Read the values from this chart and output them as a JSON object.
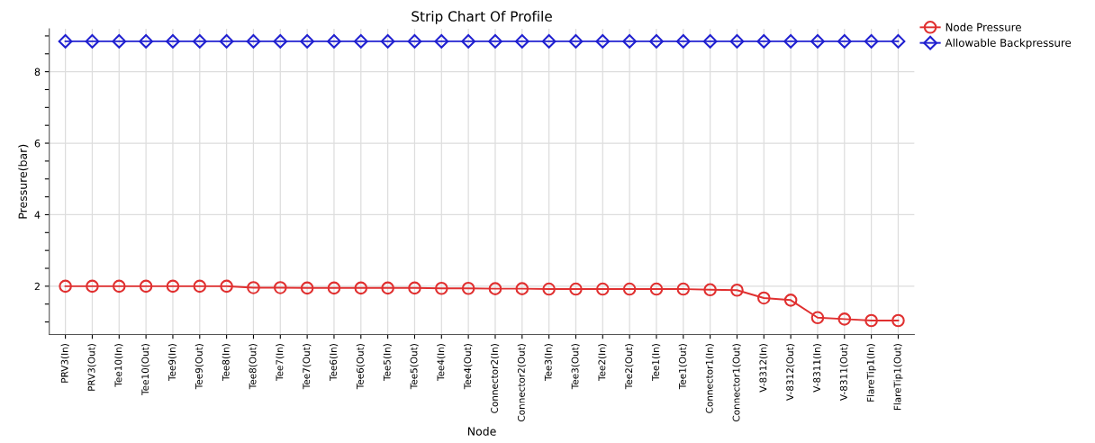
{
  "chart_data": {
    "type": "line",
    "title": "Strip Chart Of Profile",
    "xlabel": "Node",
    "ylabel": "Pressure(bar)",
    "categories": [
      "PRV3(In)",
      "PRV3(Out)",
      "Tee10(In)",
      "Tee10(Out)",
      "Tee9(In)",
      "Tee9(Out)",
      "Tee8(In)",
      "Tee8(Out)",
      "Tee7(In)",
      "Tee7(Out)",
      "Tee6(In)",
      "Tee6(Out)",
      "Tee5(In)",
      "Tee5(Out)",
      "Tee4(In)",
      "Tee4(Out)",
      "Connector2(In)",
      "Connector2(Out)",
      "Tee3(In)",
      "Tee3(Out)",
      "Tee2(In)",
      "Tee2(Out)",
      "Tee1(In)",
      "Tee1(Out)",
      "Connector1(In)",
      "Connector1(Out)",
      "V-8312(In)",
      "V-8312(Out)",
      "V-8311(In)",
      "V-8311(Out)",
      "FlareTip1(In)",
      "FlareTip1(Out)"
    ],
    "series": [
      {
        "name": "Node Pressure",
        "color": "#e03030",
        "marker": "circle",
        "values": [
          2.0,
          2.0,
          2.0,
          2.0,
          2.0,
          2.0,
          2.0,
          1.96,
          1.96,
          1.95,
          1.95,
          1.95,
          1.95,
          1.95,
          1.94,
          1.94,
          1.93,
          1.93,
          1.92,
          1.92,
          1.92,
          1.92,
          1.92,
          1.92,
          1.9,
          1.89,
          1.67,
          1.61,
          1.12,
          1.08,
          1.04,
          1.04
        ]
      },
      {
        "name": "Allowable Backpressure",
        "color": "#2020d0",
        "marker": "diamond",
        "values": [
          8.85,
          8.85,
          8.85,
          8.85,
          8.85,
          8.85,
          8.85,
          8.85,
          8.85,
          8.85,
          8.85,
          8.85,
          8.85,
          8.85,
          8.85,
          8.85,
          8.85,
          8.85,
          8.85,
          8.85,
          8.85,
          8.85,
          8.85,
          8.85,
          8.85,
          8.85,
          8.85,
          8.85,
          8.85,
          8.85,
          8.85,
          8.85
        ]
      }
    ],
    "ylim": [
      0.65,
      9.2
    ],
    "yticks": [
      {
        "value": 1,
        "label": null
      },
      {
        "value": 1.5,
        "label": null
      },
      2,
      {
        "value": 2.5,
        "label": null
      },
      {
        "value": 3,
        "label": null
      },
      {
        "value": 3.5,
        "label": null
      },
      4,
      {
        "value": 4.5,
        "label": null
      },
      {
        "value": 5,
        "label": null
      },
      {
        "value": 5.5,
        "label": null
      },
      6,
      {
        "value": 6.5,
        "label": null
      },
      {
        "value": 7,
        "label": null
      },
      {
        "value": 7.5,
        "label": null
      },
      8,
      {
        "value": 8.5,
        "label": null
      },
      {
        "value": 9,
        "label": null
      }
    ],
    "grid": true,
    "legend": "top right",
    "line_style": "solid"
  }
}
